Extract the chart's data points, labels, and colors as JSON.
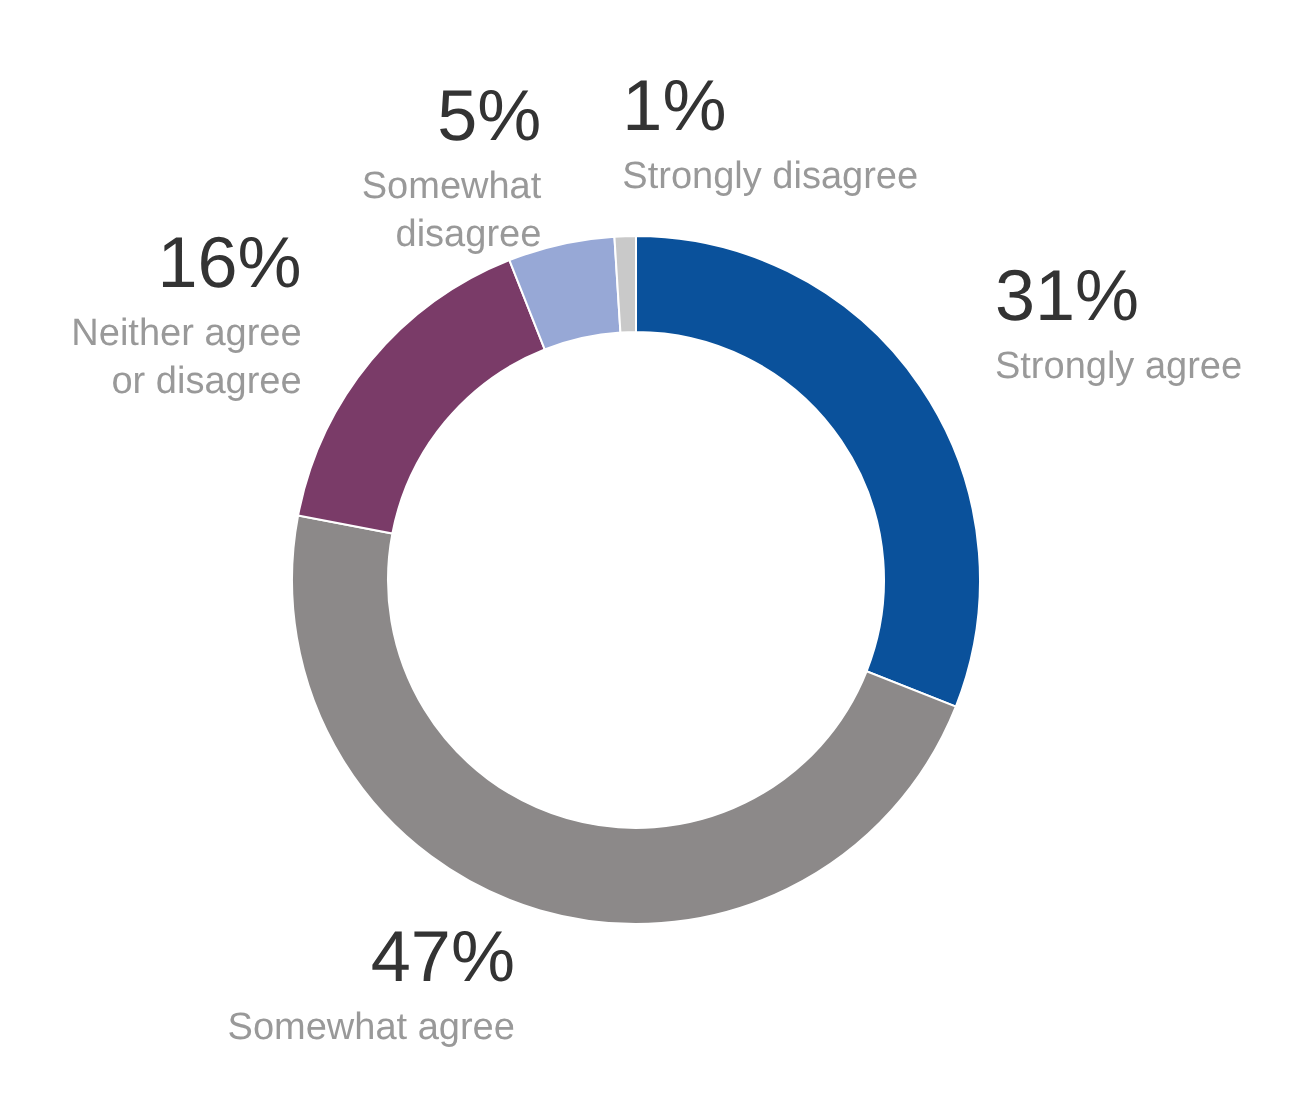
{
  "chart_data": {
    "type": "donut",
    "categories": [
      "Strongly agree",
      "Somewhat agree",
      "Neither agree or disagree",
      "Somewhat disagree",
      "Strongly disagree"
    ],
    "values": [
      31,
      47,
      16,
      5,
      1
    ],
    "colors": [
      "#0a519b",
      "#8c8989",
      "#7a3b68",
      "#97a8d6",
      "#c9c9c9"
    ],
    "value_labels": [
      "31%",
      "47%",
      "16%",
      "5%",
      "1%"
    ]
  }
}
